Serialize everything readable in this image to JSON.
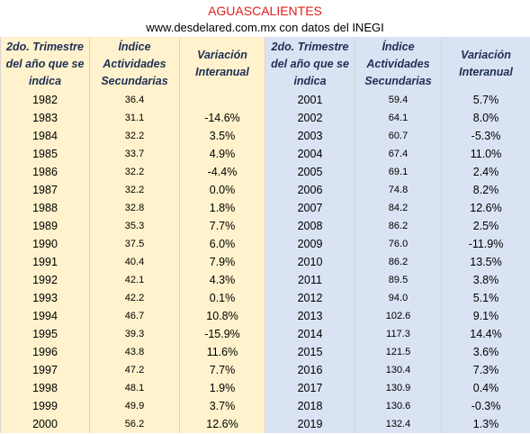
{
  "header": {
    "title": "AGUASCALIENTES",
    "subtitle": "www.desdelared.com.mx con datos del INEGI"
  },
  "table": {
    "columns": [
      "2do. Trimestre del año que se indica",
      "Índice Actividades Secundarias",
      "Variación Interanual",
      "2do. Trimestre del año que se indica",
      "Índice Actividades Secundarias",
      "Variación Interanual"
    ],
    "rows": [
      [
        "1982",
        "36.4",
        null,
        "2001",
        "59.4",
        "5.7%"
      ],
      [
        "1983",
        "31.1",
        "-14.6%",
        "2002",
        "64.1",
        "8.0%"
      ],
      [
        "1984",
        "32.2",
        "3.5%",
        "2003",
        "60.7",
        "-5.3%"
      ],
      [
        "1985",
        "33.7",
        "4.9%",
        "2004",
        "67.4",
        "11.0%"
      ],
      [
        "1986",
        "32.2",
        "-4.4%",
        "2005",
        "69.1",
        "2.4%"
      ],
      [
        "1987",
        "32.2",
        "0.0%",
        "2006",
        "74.8",
        "8.2%"
      ],
      [
        "1988",
        "32.8",
        "1.8%",
        "2007",
        "84.2",
        "12.6%"
      ],
      [
        "1989",
        "35.3",
        "7.7%",
        "2008",
        "86.2",
        "2.5%"
      ],
      [
        "1990",
        "37.5",
        "6.0%",
        "2009",
        "76.0",
        "-11.9%"
      ],
      [
        "1991",
        "40.4",
        "7.9%",
        "2010",
        "86.2",
        "13.5%"
      ],
      [
        "1992",
        "42.1",
        "4.3%",
        "2011",
        "89.5",
        "3.8%"
      ],
      [
        "1993",
        "42.2",
        "0.1%",
        "2012",
        "94.0",
        "5.1%"
      ],
      [
        "1994",
        "46.7",
        "10.8%",
        "2013",
        "102.6",
        "9.1%"
      ],
      [
        "1995",
        "39.3",
        "-15.9%",
        "2014",
        "117.3",
        "14.4%"
      ],
      [
        "1996",
        "43.8",
        "11.6%",
        "2015",
        "121.5",
        "3.6%"
      ],
      [
        "1997",
        "47.2",
        "7.7%",
        "2016",
        "130.4",
        "7.3%"
      ],
      [
        "1998",
        "48.1",
        "1.9%",
        "2017",
        "130.9",
        "0.4%"
      ],
      [
        "1999",
        "49.9",
        "3.7%",
        "2018",
        "130.6",
        "-0.3%"
      ],
      [
        "2000",
        "56.2",
        "12.6%",
        "2019",
        "132.4",
        "1.3%"
      ]
    ]
  }
}
